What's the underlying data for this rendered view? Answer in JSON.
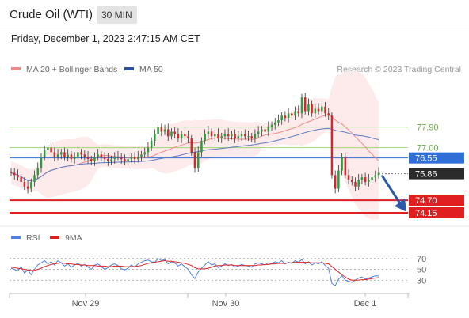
{
  "header": {
    "title": "Crude Oil (WTI)",
    "timeframe": "30 MIN"
  },
  "timestamp": "Friday, December 1, 2023 2:47:15 AM CET",
  "copyright": "Research © 2023 Trading Central",
  "colors": {
    "bull": "#2e9c3a",
    "bear": "#d6272c",
    "bollinger": "#fde6e6",
    "ma20": "#f08a8a",
    "ma50": "#5a7cc2",
    "resistance": "#9fd47a",
    "pivot": "#2f6fd6",
    "support": "#e02020",
    "rsi": "#4f7fe0",
    "rsi_ma": "#e02020"
  },
  "chart_data": [
    {
      "type": "candlestick",
      "title": "",
      "x_ticks": [
        "Nov 29",
        "Nov 30",
        "Dec 1"
      ],
      "y_ticks": [],
      "legend": [
        {
          "name": "MA 20 + Bollinger Bands",
          "color": "#f08a8a"
        },
        {
          "name": "MA 50",
          "color": "#2c4f9e"
        }
      ],
      "levels": [
        {
          "label": "77.90",
          "value": 77.9,
          "kind": "resistance"
        },
        {
          "label": "77.00",
          "value": 77.0,
          "kind": "resistance"
        },
        {
          "label": "76.55",
          "value": 76.55,
          "kind": "pivot"
        },
        {
          "label": "75.86",
          "value": 75.86,
          "kind": "last"
        },
        {
          "label": "74.70",
          "value": 74.7,
          "kind": "support"
        },
        {
          "label": "74.15",
          "value": 74.15,
          "kind": "support"
        }
      ],
      "ylim": [
        73.7,
        80.0
      ],
      "forecast": {
        "from": 75.86,
        "to": 74.3,
        "direction": "down"
      },
      "close": [
        75.9,
        75.8,
        75.7,
        75.5,
        75.3,
        75.2,
        75.5,
        75.8,
        76.1,
        76.6,
        76.9,
        77.0,
        76.8,
        76.6,
        76.7,
        76.8,
        76.6,
        76.7,
        76.5,
        76.6,
        76.8,
        76.7,
        76.6,
        76.5,
        76.4,
        76.6,
        76.7,
        76.6,
        76.5,
        76.4,
        76.5,
        76.6,
        76.6,
        76.5,
        76.4,
        76.5,
        76.6,
        76.5,
        76.6,
        76.7,
        76.8,
        77.0,
        77.3,
        77.6,
        77.9,
        77.7,
        77.8,
        77.5,
        77.7,
        77.6,
        77.4,
        77.6,
        77.5,
        77.4,
        76.8,
        76.1,
        76.8,
        77.3,
        77.6,
        77.7,
        77.5,
        77.6,
        77.4,
        77.5,
        77.6,
        77.5,
        77.6,
        77.4,
        77.5,
        77.6,
        77.5,
        77.5,
        77.4,
        77.6,
        77.7,
        77.8,
        77.7,
        77.9,
        78.0,
        78.1,
        78.2,
        78.4,
        78.3,
        78.5,
        78.4,
        78.6,
        78.5,
        79.2,
        78.6,
        78.9,
        78.5,
        78.7,
        78.6,
        78.8,
        78.5,
        78.4,
        75.8,
        75.2,
        76.0,
        76.6,
        75.8,
        75.6,
        75.5,
        75.3,
        75.6,
        75.7,
        75.5,
        75.6,
        75.7,
        75.8,
        75.9
      ]
    },
    {
      "type": "line",
      "title": "",
      "x_ticks": [
        "Nov 29",
        "Nov 30",
        "Dec 1"
      ],
      "y_ticks": [
        "70",
        "50",
        "30"
      ],
      "ylim": [
        10,
        90
      ],
      "legend": [
        {
          "name": "RSI",
          "color": "#4f7fe0"
        },
        {
          "name": "9MA",
          "color": "#e02020"
        }
      ],
      "series": [
        {
          "name": "RSI",
          "values": [
            52,
            50,
            47,
            55,
            43,
            49,
            40,
            50,
            58,
            62,
            66,
            60,
            64,
            58,
            66,
            62,
            56,
            60,
            54,
            58,
            61,
            56,
            59,
            54,
            50,
            58,
            60,
            55,
            50,
            53,
            58,
            60,
            57,
            51,
            49,
            52,
            58,
            54,
            60,
            63,
            66,
            67,
            64,
            63,
            70,
            66,
            68,
            60,
            64,
            62,
            56,
            60,
            55,
            50,
            40,
            33,
            45,
            52,
            58,
            64,
            58,
            60,
            53,
            56,
            60,
            57,
            59,
            54,
            56,
            59,
            57,
            56,
            54,
            60,
            62,
            60,
            58,
            62,
            60,
            64,
            62,
            66,
            60,
            63,
            61,
            66,
            63,
            68,
            60,
            64,
            58,
            62,
            60,
            64,
            57,
            52,
            24,
            20,
            32,
            38,
            30,
            28,
            26,
            30,
            34,
            36,
            32,
            34,
            36,
            38,
            38
          ]
        },
        {
          "name": "9MA",
          "values": [
            54,
            53,
            52,
            51,
            50,
            49,
            48,
            48,
            50,
            52,
            55,
            57,
            59,
            60,
            61,
            62,
            61,
            60,
            60,
            59,
            59,
            58,
            58,
            57,
            57,
            57,
            56,
            56,
            56,
            55,
            55,
            56,
            56,
            56,
            55,
            55,
            55,
            55,
            56,
            57,
            59,
            61,
            62,
            63,
            64,
            65,
            66,
            65,
            65,
            64,
            63,
            62,
            61,
            59,
            57,
            53,
            51,
            51,
            51,
            52,
            54,
            56,
            57,
            57,
            58,
            58,
            58,
            57,
            57,
            57,
            57,
            57,
            57,
            57,
            58,
            58,
            59,
            59,
            60,
            60,
            61,
            61,
            61,
            62,
            62,
            63,
            63,
            63,
            63,
            63,
            62,
            62,
            62,
            62,
            61,
            60,
            55,
            50,
            45,
            40,
            36,
            32,
            30,
            30,
            30,
            31,
            31,
            32,
            33,
            34,
            35
          ]
        }
      ]
    }
  ]
}
